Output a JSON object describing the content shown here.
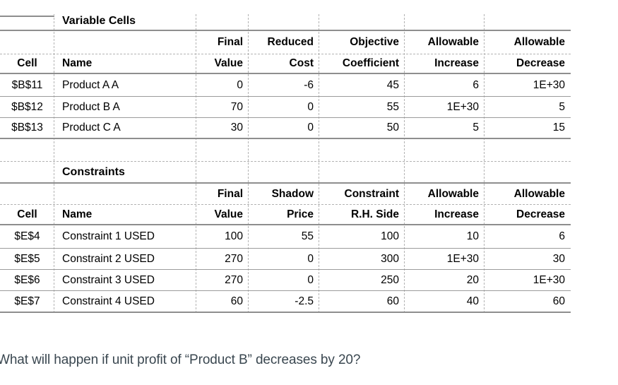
{
  "report": {
    "sections": [
      {
        "title": "Variable Cells",
        "header_row1": [
          "",
          "",
          "Final",
          "Reduced",
          "Objective",
          "Allowable",
          "Allowable"
        ],
        "header_row2": [
          "Cell",
          "Name",
          "Value",
          "Cost",
          "Coefficient",
          "Increase",
          "Decrease"
        ],
        "rows": [
          [
            "$B$11",
            "Product A A",
            "0",
            "-6",
            "45",
            "6",
            "1E+30"
          ],
          [
            "$B$12",
            "Product B A",
            "70",
            "0",
            "55",
            "1E+30",
            "5"
          ],
          [
            "$B$13",
            "Product C A",
            "30",
            "0",
            "50",
            "5",
            "15"
          ]
        ]
      },
      {
        "title": "Constraints",
        "header_row1": [
          "",
          "",
          "Final",
          "Shadow",
          "Constraint",
          "Allowable",
          "Allowable"
        ],
        "header_row2": [
          "Cell",
          "Name",
          "Value",
          "Price",
          "R.H. Side",
          "Increase",
          "Decrease"
        ],
        "rows": [
          [
            "$E$4",
            "Constraint 1 USED",
            "100",
            "55",
            "100",
            "10",
            "6"
          ],
          [
            "$E$5",
            "Constraint 2 USED",
            "270",
            "0",
            "300",
            "1E+30",
            "30"
          ],
          [
            "$E$6",
            "Constraint 3 USED",
            "270",
            "0",
            "250",
            "20",
            "1E+30"
          ],
          [
            "$E$7",
            "Constraint 4 USED",
            "60",
            "-2.5",
            "60",
            "40",
            "60"
          ]
        ]
      }
    ]
  },
  "question": {
    "text": "What will happen if unit profit of “Product B” decreases by 20?"
  },
  "colors": {
    "grid_solid": "#8e8e8e",
    "grid_solid_thin": "#9b9b9b",
    "grid_dashed": "#b3b3b3",
    "table_text": "#000000",
    "question_text": "#3a4750"
  }
}
